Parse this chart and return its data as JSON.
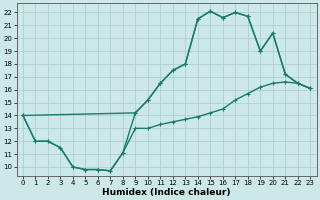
{
  "xlabel": "Humidex (Indice chaleur)",
  "bg_color": "#cde8e8",
  "line_color": "#1a7a6e",
  "grid_color": "#aecfcf",
  "xlim": [
    -0.5,
    23.5
  ],
  "ylim": [
    9.3,
    22.7
  ],
  "xticks": [
    0,
    1,
    2,
    3,
    4,
    5,
    6,
    7,
    8,
    9,
    10,
    11,
    12,
    13,
    14,
    15,
    16,
    17,
    18,
    19,
    20,
    21,
    22,
    23
  ],
  "yticks": [
    10,
    11,
    12,
    13,
    14,
    15,
    16,
    17,
    18,
    19,
    20,
    21,
    22
  ],
  "line1_x": [
    0,
    1,
    2,
    3,
    4,
    5,
    6,
    7,
    8,
    9,
    10,
    11,
    12,
    13,
    14,
    15,
    16,
    17,
    18,
    19,
    20,
    21,
    22,
    23
  ],
  "line1_y": [
    14,
    12,
    12,
    11.5,
    10,
    9.8,
    9.8,
    9.7,
    11.1,
    14.2,
    15.2,
    16.5,
    17.5,
    18,
    21.5,
    22.1,
    21.6,
    22.0,
    21.7,
    19.0,
    20.4,
    17.2,
    16.5,
    16.1
  ],
  "line2_x": [
    0,
    1,
    2,
    3,
    4,
    5,
    6,
    7,
    8,
    9,
    10,
    11,
    12,
    13,
    14,
    15,
    16,
    17,
    18,
    19,
    20,
    21,
    22,
    23
  ],
  "line2_y": [
    14,
    12,
    12,
    11.5,
    10,
    9.8,
    9.8,
    9.7,
    11.1,
    13.0,
    13.0,
    13.3,
    13.5,
    13.7,
    13.9,
    14.2,
    14.5,
    15.2,
    15.7,
    16.2,
    16.5,
    16.6,
    16.5,
    16.1
  ],
  "line3_x": [
    0,
    9,
    10,
    11,
    12,
    13,
    14,
    15,
    16,
    17,
    18,
    19,
    20,
    21,
    22,
    23
  ],
  "line3_y": [
    14,
    14.2,
    15.2,
    16.5,
    17.5,
    18,
    21.5,
    22.1,
    21.6,
    22.0,
    21.7,
    19.0,
    20.4,
    17.2,
    16.5,
    16.1
  ],
  "markersize": 3.5,
  "linewidth": 1.0,
  "tick_fontsize": 5.0,
  "xlabel_fontsize": 6.5
}
